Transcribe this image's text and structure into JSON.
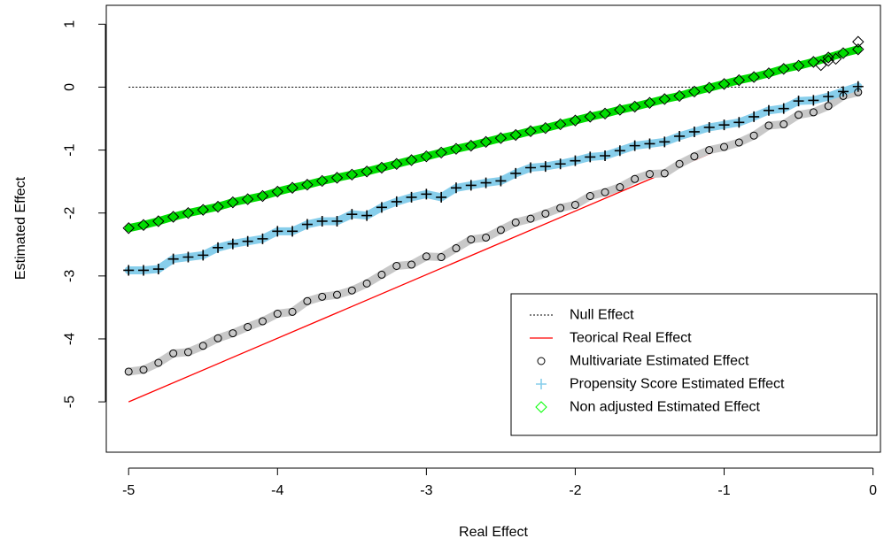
{
  "chart_data": {
    "type": "line",
    "title": "",
    "xlabel": "Real Effect",
    "ylabel": "Estimated Effect",
    "xlim": [
      -5.15,
      0.05
    ],
    "ylim": [
      -5.8,
      1.3
    ],
    "x_ticks": [
      -5,
      -4,
      -3,
      -2,
      -1,
      0
    ],
    "y_ticks": [
      -5,
      -4,
      -3,
      -2,
      -1,
      0,
      1
    ],
    "x_tick_labels": [
      "-5",
      "-4",
      "-3",
      "-2",
      "-1",
      "0"
    ],
    "y_tick_labels": [
      "-5",
      "-4",
      "-3",
      "-2",
      "-1",
      "0",
      "1"
    ],
    "grid": false,
    "legend_position": "bottom-right",
    "x": [
      -5.0,
      -4.9,
      -4.8,
      -4.7,
      -4.6,
      -4.5,
      -4.4,
      -4.3,
      -4.2,
      -4.1,
      -4.0,
      -3.9,
      -3.8,
      -3.7,
      -3.6,
      -3.5,
      -3.4,
      -3.3,
      -3.2,
      -3.1,
      -3.0,
      -2.9,
      -2.8,
      -2.7,
      -2.6,
      -2.5,
      -2.4,
      -2.3,
      -2.2,
      -2.1,
      -2.0,
      -1.9,
      -1.8,
      -1.7,
      -1.6,
      -1.5,
      -1.4,
      -1.3,
      -1.2,
      -1.1,
      -1.0,
      -0.9,
      -0.8,
      -0.7,
      -0.6,
      -0.5,
      -0.4,
      -0.3,
      -0.2,
      -0.1
    ],
    "series": [
      {
        "name": "Null Effect",
        "kind": "hline",
        "y": 0,
        "color": "#000000",
        "style": "dotted"
      },
      {
        "name": "Teorical Real Effect",
        "kind": "line",
        "points_x": [
          -5.0,
          -0.1
        ],
        "points_y": [
          -5.0,
          -0.05
        ],
        "color": "#ff0000"
      },
      {
        "name": "Multivariate Estimated Effect",
        "kind": "points",
        "marker": "circle",
        "color": "#000000",
        "band_color": "#c8c8c8",
        "values": [
          -4.52,
          -4.49,
          -4.38,
          -4.23,
          -4.21,
          -4.11,
          -3.99,
          -3.91,
          -3.81,
          -3.72,
          -3.6,
          -3.57,
          -3.4,
          -3.33,
          -3.3,
          -3.23,
          -3.12,
          -2.98,
          -2.84,
          -2.82,
          -2.69,
          -2.7,
          -2.56,
          -2.42,
          -2.39,
          -2.27,
          -2.15,
          -2.09,
          -2.01,
          -1.92,
          -1.87,
          -1.73,
          -1.67,
          -1.59,
          -1.46,
          -1.38,
          -1.37,
          -1.22,
          -1.1,
          -1.0,
          -0.95,
          -0.88,
          -0.77,
          -0.61,
          -0.59,
          -0.44,
          -0.4,
          -0.3,
          -0.14,
          -0.08
        ]
      },
      {
        "name": "Propensity Score Estimated Effect",
        "kind": "points",
        "marker": "plus",
        "color": "#000000",
        "band_color": "#87ceeb",
        "legend_color": "#87ceeb",
        "values": [
          -2.91,
          -2.91,
          -2.89,
          -2.73,
          -2.7,
          -2.67,
          -2.55,
          -2.49,
          -2.45,
          -2.41,
          -2.29,
          -2.29,
          -2.18,
          -2.13,
          -2.13,
          -2.02,
          -2.04,
          -1.91,
          -1.82,
          -1.75,
          -1.7,
          -1.75,
          -1.6,
          -1.56,
          -1.52,
          -1.49,
          -1.37,
          -1.28,
          -1.26,
          -1.22,
          -1.17,
          -1.11,
          -1.09,
          -1.01,
          -0.93,
          -0.9,
          -0.87,
          -0.78,
          -0.71,
          -0.64,
          -0.6,
          -0.56,
          -0.47,
          -0.37,
          -0.34,
          -0.22,
          -0.21,
          -0.15,
          -0.07,
          0.01
        ]
      },
      {
        "name": "Non adjusted Estimated Effect",
        "kind": "points",
        "marker": "diamond",
        "color": "#000000",
        "band_color": "#00dd00",
        "legend_color": "#00ff00",
        "values": [
          -2.24,
          -2.19,
          -2.13,
          -2.06,
          -2.0,
          -1.95,
          -1.9,
          -1.83,
          -1.78,
          -1.73,
          -1.66,
          -1.6,
          -1.55,
          -1.49,
          -1.44,
          -1.39,
          -1.34,
          -1.28,
          -1.22,
          -1.16,
          -1.1,
          -1.04,
          -0.98,
          -0.93,
          -0.87,
          -0.81,
          -0.76,
          -0.7,
          -0.65,
          -0.59,
          -0.53,
          -0.47,
          -0.42,
          -0.36,
          -0.31,
          -0.25,
          -0.19,
          -0.14,
          -0.07,
          -0.01,
          0.05,
          0.11,
          0.16,
          0.22,
          0.29,
          0.34,
          0.4,
          0.47,
          0.54,
          0.6
        ]
      }
    ],
    "extra_points": [
      {
        "series": "Non adjusted Estimated Effect",
        "x": -0.35,
        "y": 0.35
      },
      {
        "series": "Non adjusted Estimated Effect",
        "x": -0.3,
        "y": 0.42
      },
      {
        "series": "Non adjusted Estimated Effect",
        "x": -0.25,
        "y": 0.45
      },
      {
        "series": "Non adjusted Estimated Effect",
        "x": -0.1,
        "y": 0.72
      }
    ]
  }
}
